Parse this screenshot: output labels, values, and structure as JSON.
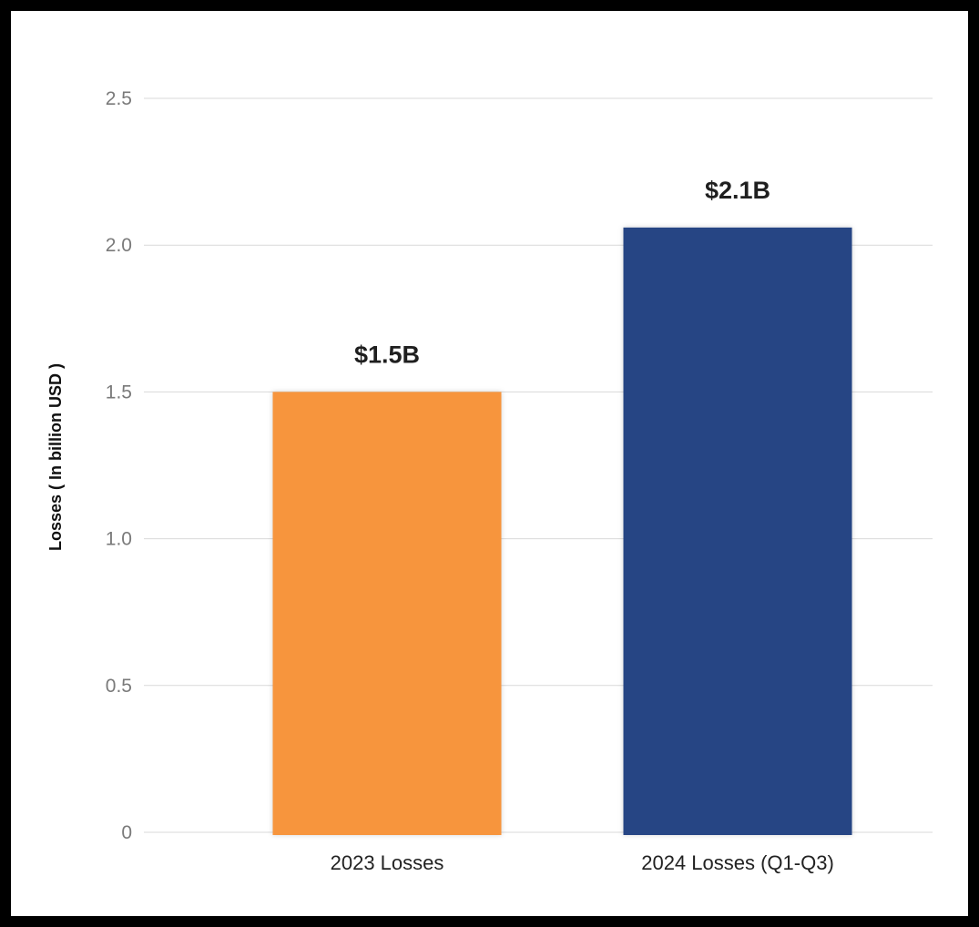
{
  "chart_data": {
    "type": "bar",
    "title": "",
    "xlabel": "",
    "ylabel": "Losses ( In billion USD )",
    "ylim": [
      0,
      2.5
    ],
    "yticks": [
      0,
      0.5,
      1.0,
      1.5,
      2.0,
      2.5
    ],
    "ytick_labels": [
      "0",
      "0.5",
      "1.0",
      "1.5",
      "2.0",
      "2.5"
    ],
    "grid": true,
    "legend": "none",
    "categories": [
      "2023 Losses",
      "2024 Losses (Q1-Q3)"
    ],
    "values": [
      1.5,
      2.06
    ],
    "data_labels": [
      "$1.5B",
      "$2.1B"
    ],
    "colors": [
      "#F7953E",
      "#264484"
    ]
  }
}
